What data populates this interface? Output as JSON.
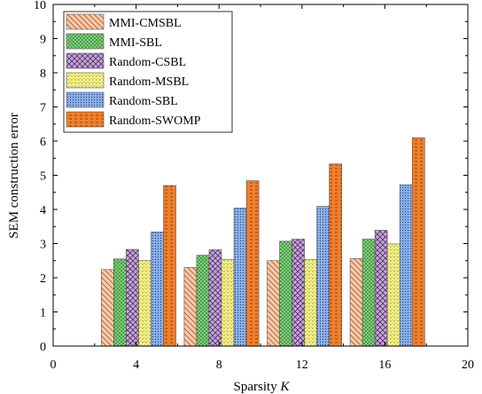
{
  "chart_data": {
    "type": "bar",
    "title": "",
    "xlabel": "Sparsity ",
    "xlabel_var": "K",
    "ylabel": "SEM construction error",
    "xlim": [
      0,
      20
    ],
    "ylim": [
      0,
      10
    ],
    "xticks": [
      "0",
      "4",
      "8",
      "12",
      "16",
      "20"
    ],
    "yticks": [
      "0",
      "1",
      "2",
      "3",
      "4",
      "5",
      "6",
      "7",
      "8",
      "9",
      "10"
    ],
    "categories": [
      4,
      8,
      12,
      16
    ],
    "legend_position": "top-left",
    "grid": false,
    "series": [
      {
        "name": "MMI-CMSBL",
        "values": [
          2.24,
          2.3,
          2.5,
          2.56
        ],
        "color": "#f9c9a8",
        "pattern": "diag-right"
      },
      {
        "name": "MMI-SBL",
        "values": [
          2.55,
          2.66,
          3.07,
          3.13
        ],
        "color": "#7ed07a",
        "pattern": "dots"
      },
      {
        "name": "Random-CSBL",
        "values": [
          2.83,
          2.82,
          3.13,
          3.39
        ],
        "color": "#c8a6dc",
        "pattern": "cross"
      },
      {
        "name": "Random-MSBL",
        "values": [
          2.5,
          2.54,
          2.53,
          2.99
        ],
        "color": "#f7f28a",
        "pattern": "dots-light"
      },
      {
        "name": "Random-SBL",
        "values": [
          3.34,
          4.04,
          4.09,
          4.72
        ],
        "color": "#8aaee6",
        "pattern": "fine-dots"
      },
      {
        "name": "Random-SWOMP",
        "values": [
          4.7,
          4.84,
          5.33,
          6.1
        ],
        "color": "#f07f2c",
        "pattern": "dash"
      }
    ]
  }
}
